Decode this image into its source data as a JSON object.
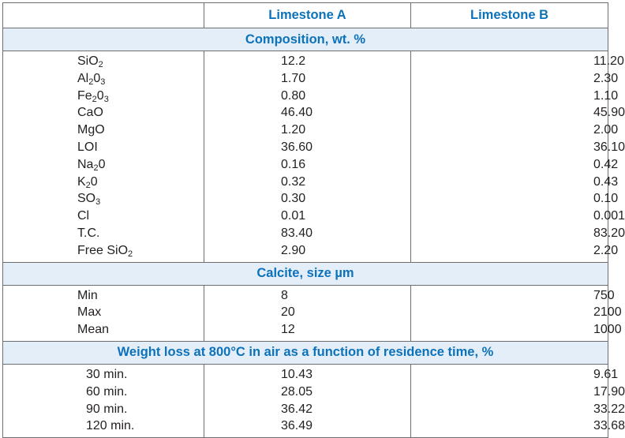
{
  "header": {
    "col_a": "Limestone A",
    "col_b": "Limestone B"
  },
  "sections": {
    "composition": "Composition, wt. %",
    "calcite": "Calcite, size µm",
    "weight_loss": "Weight loss at 800°C in air as a function of residence time, %"
  },
  "composition": [
    {
      "label": "SiO",
      "sub": "2",
      "after": "",
      "a": "12.2",
      "b": "11.20"
    },
    {
      "label": "Al",
      "sub": "2",
      "after": "0",
      "sub2": "3",
      "a": "1.70",
      "b": "2.30"
    },
    {
      "label": "Fe",
      "sub": "2",
      "after": "0",
      "sub2": "3",
      "a": "0.80",
      "b": "1.10"
    },
    {
      "label": "CaO",
      "a": "46.40",
      "b": "45.90"
    },
    {
      "label": "MgO",
      "a": "1.20",
      "b": "2.00"
    },
    {
      "label": "LOI",
      "a": "36.60",
      "b": "36.10"
    },
    {
      "label": "Na",
      "sub": "2",
      "after": "0",
      "a": "0.16",
      "b": "0.42"
    },
    {
      "label": "K",
      "sub": "2",
      "after": "0",
      "a": "0.32",
      "b": "0.43"
    },
    {
      "label": "SO",
      "sub": "3",
      "a": "0.30",
      "b": "0.10"
    },
    {
      "label": "Cl",
      "a": "0.01",
      "b": "0.001"
    },
    {
      "label": "T.C.",
      "a": "83.40",
      "b": "83.20"
    },
    {
      "label": "Free SiO",
      "sub": "2",
      "a": "2.90",
      "b": "2.20"
    }
  ],
  "calcite": [
    {
      "label": "Min",
      "a": "8",
      "b": "750"
    },
    {
      "label": "Max",
      "a": "20",
      "b": "2100"
    },
    {
      "label": "Mean",
      "a": "12",
      "b": "1000"
    }
  ],
  "weight_loss": [
    {
      "label": "30 min.",
      "a": "10.43",
      "b": "9.61"
    },
    {
      "label": "60 min.",
      "a": "28.05",
      "b": "17.90"
    },
    {
      "label": "90 min.",
      "a": "36.42",
      "b": "33.22"
    },
    {
      "label": "120 min.",
      "a": "36.49",
      "b": "33.68"
    }
  ]
}
